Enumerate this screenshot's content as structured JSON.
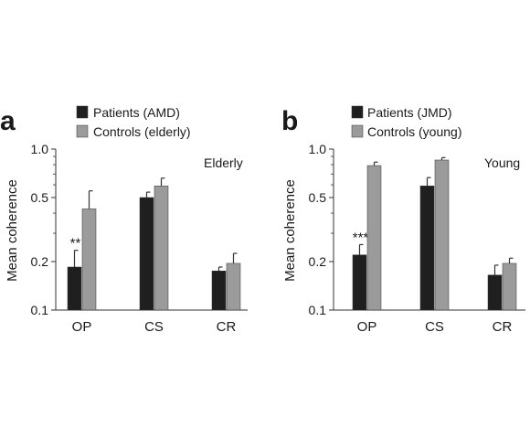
{
  "chart_data": [
    {
      "panel": "a",
      "type": "bar",
      "scale": "log",
      "ylabel": "Mean coherence",
      "ylim": [
        0.1,
        1.0
      ],
      "yticks": [
        "0.1",
        "0.2",
        "0.5",
        "1.0"
      ],
      "ytick_values": [
        0.1,
        0.2,
        0.5,
        1.0
      ],
      "categories": [
        "OP",
        "CS",
        "CR"
      ],
      "annotation": "Elderly",
      "legend_position": "top-left",
      "series": [
        {
          "name": "Patients (AMD)",
          "color": "#1f1f1f",
          "values": [
            0.185,
            0.5,
            0.175
          ],
          "errors": [
            0.235,
            0.54,
            0.185
          ],
          "significance": [
            "**",
            "",
            ""
          ]
        },
        {
          "name": "Controls (elderly)",
          "color": "#9b9b9b",
          "values": [
            0.425,
            0.59,
            0.195
          ],
          "errors": [
            0.55,
            0.66,
            0.225
          ],
          "significance": [
            "",
            "",
            ""
          ]
        }
      ]
    },
    {
      "panel": "b",
      "type": "bar",
      "scale": "log",
      "ylabel": "Mean coherence",
      "ylim": [
        0.1,
        1.0
      ],
      "yticks": [
        "0.1",
        "0.2",
        "0.5",
        "1.0"
      ],
      "ytick_values": [
        0.1,
        0.2,
        0.5,
        1.0
      ],
      "categories": [
        "OP",
        "CS",
        "CR"
      ],
      "annotation": "Young",
      "legend_position": "top-left",
      "series": [
        {
          "name": "Patients (JMD)",
          "color": "#1f1f1f",
          "values": [
            0.22,
            0.59,
            0.165
          ],
          "errors": [
            0.255,
            0.665,
            0.19
          ],
          "significance": [
            "***",
            "",
            ""
          ]
        },
        {
          "name": "Controls (young)",
          "color": "#9b9b9b",
          "values": [
            0.79,
            0.855,
            0.195
          ],
          "errors": [
            0.83,
            0.885,
            0.21
          ],
          "significance": [
            "",
            "",
            ""
          ]
        }
      ]
    }
  ]
}
